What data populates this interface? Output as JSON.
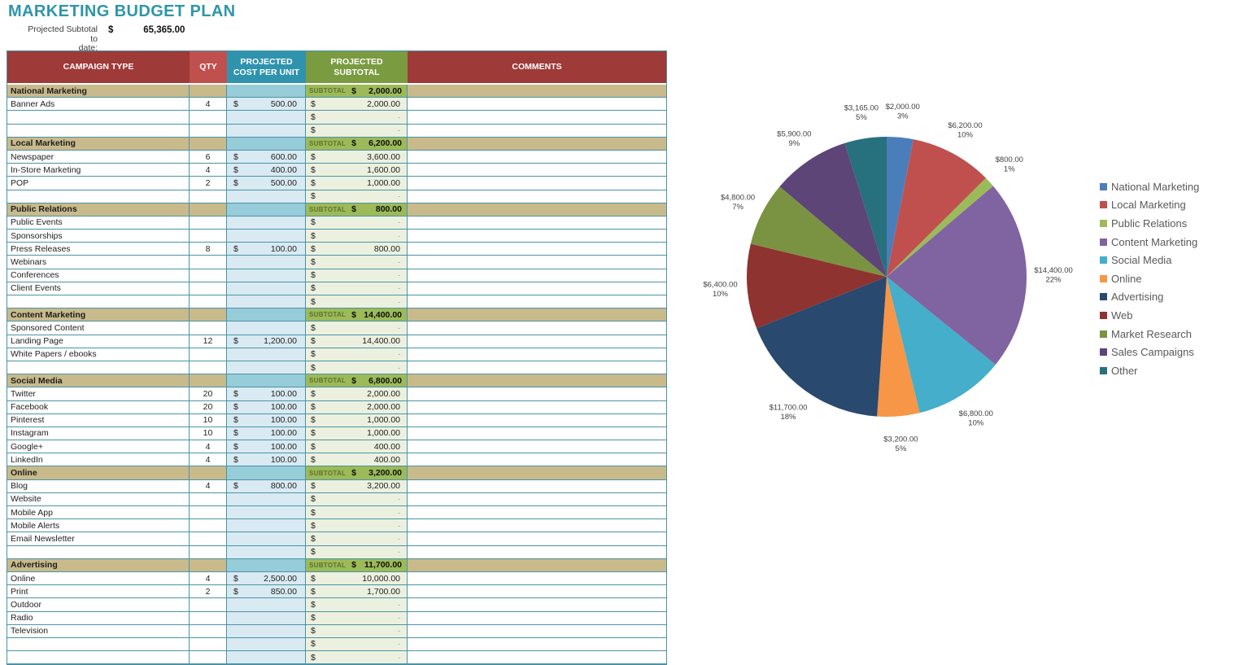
{
  "page_title": "MARKETING BUDGET PLAN",
  "summary": {
    "label_line1": "Projected Subtotal to",
    "label_line2": "date:",
    "currency": "$",
    "value": "65,365.00"
  },
  "table": {
    "headers": [
      "CAMPAIGN TYPE",
      "QTY",
      "PROJECTED COST PER UNIT",
      "PROJECTED SUBTOTAL",
      "COMMENTS"
    ],
    "subtotal_label": "SUBTOTAL",
    "currency": "$",
    "dash": "-",
    "rows": [
      {
        "type": "section",
        "name": "National Marketing",
        "subtotal": "2,000.00"
      },
      {
        "type": "item",
        "name": "Banner Ads",
        "qty": "4",
        "unit": "500.00",
        "subtotal": "2,000.00"
      },
      {
        "type": "empty"
      },
      {
        "type": "empty"
      },
      {
        "type": "section",
        "name": "Local Marketing",
        "subtotal": "6,200.00"
      },
      {
        "type": "item",
        "name": "Newspaper",
        "qty": "6",
        "unit": "600.00",
        "subtotal": "3,600.00"
      },
      {
        "type": "item",
        "name": "In-Store Marketing",
        "qty": "4",
        "unit": "400.00",
        "subtotal": "1,600.00"
      },
      {
        "type": "item",
        "name": "POP",
        "qty": "2",
        "unit": "500.00",
        "subtotal": "1,000.00"
      },
      {
        "type": "empty"
      },
      {
        "type": "section",
        "name": "Public Relations",
        "subtotal": "800.00"
      },
      {
        "type": "item",
        "name": "Public Events"
      },
      {
        "type": "item",
        "name": "Sponsorships"
      },
      {
        "type": "item",
        "name": "Press Releases",
        "qty": "8",
        "unit": "100.00",
        "subtotal": "800.00"
      },
      {
        "type": "item",
        "name": "Webinars"
      },
      {
        "type": "item",
        "name": "Conferences"
      },
      {
        "type": "item",
        "name": "Client Events"
      },
      {
        "type": "empty"
      },
      {
        "type": "section",
        "name": "Content Marketing",
        "subtotal": "14,400.00"
      },
      {
        "type": "item",
        "name": "Sponsored Content"
      },
      {
        "type": "item",
        "name": "Landing Page",
        "qty": "12",
        "unit": "1,200.00",
        "subtotal": "14,400.00"
      },
      {
        "type": "item",
        "name": "White Papers / ebooks"
      },
      {
        "type": "empty"
      },
      {
        "type": "section",
        "name": "Social Media",
        "subtotal": "6,800.00"
      },
      {
        "type": "item",
        "name": "Twitter",
        "qty": "20",
        "unit": "100.00",
        "subtotal": "2,000.00"
      },
      {
        "type": "item",
        "name": "Facebook",
        "qty": "20",
        "unit": "100.00",
        "subtotal": "2,000.00"
      },
      {
        "type": "item",
        "name": "Pinterest",
        "qty": "10",
        "unit": "100.00",
        "subtotal": "1,000.00"
      },
      {
        "type": "item",
        "name": "Instagram",
        "qty": "10",
        "unit": "100.00",
        "subtotal": "1,000.00"
      },
      {
        "type": "item",
        "name": "Google+",
        "qty": "4",
        "unit": "100.00",
        "subtotal": "400.00"
      },
      {
        "type": "item",
        "name": "LinkedIn",
        "qty": "4",
        "unit": "100.00",
        "subtotal": "400.00"
      },
      {
        "type": "section",
        "name": "Online",
        "subtotal": "3,200.00"
      },
      {
        "type": "item",
        "name": "Blog",
        "qty": "4",
        "unit": "800.00",
        "subtotal": "3,200.00"
      },
      {
        "type": "item",
        "name": "Website"
      },
      {
        "type": "item",
        "name": "Mobile App"
      },
      {
        "type": "item",
        "name": "Mobile Alerts"
      },
      {
        "type": "item",
        "name": "Email Newsletter"
      },
      {
        "type": "empty"
      },
      {
        "type": "section",
        "name": "Advertising",
        "subtotal": "11,700.00"
      },
      {
        "type": "item",
        "name": "Online",
        "qty": "4",
        "unit": "2,500.00",
        "subtotal": "10,000.00"
      },
      {
        "type": "item",
        "name": "Print",
        "qty": "2",
        "unit": "850.00",
        "subtotal": "1,700.00"
      },
      {
        "type": "item",
        "name": "Outdoor"
      },
      {
        "type": "item",
        "name": "Radio"
      },
      {
        "type": "item",
        "name": "Television"
      },
      {
        "type": "empty"
      },
      {
        "type": "empty"
      }
    ]
  },
  "chart_data": {
    "type": "pie",
    "categories": [
      "National Marketing",
      "Local Marketing",
      "Public Relations",
      "Content Marketing",
      "Social Media",
      "Online",
      "Advertising",
      "Web",
      "Market Research",
      "Sales Campaigns",
      "Other"
    ],
    "values": [
      2000,
      6200,
      800,
      14400,
      6800,
      3200,
      11700,
      6400,
      4800,
      5900,
      3165
    ],
    "total": 65365,
    "amount_labels": [
      "$2,000.00",
      "$6,200.00",
      "$800.00",
      "$14,400.00",
      "$6,800.00",
      "$3,200.00",
      "$11,700.00",
      "$6,400.00",
      "$4,800.00",
      "$5,900.00",
      "$3,165.00"
    ],
    "percent_labels": [
      "3%",
      "10%",
      "1%",
      "22%",
      "10%",
      "5%",
      "18%",
      "10%",
      "7%",
      "9%",
      "5%"
    ],
    "colors": [
      "#4a7ebb",
      "#c0504d",
      "#9bbb59",
      "#8064a2",
      "#44aecb",
      "#f79646",
      "#29496e",
      "#8e3330",
      "#7a9342",
      "#5d4577",
      "#27707e"
    ],
    "legend_position": "right",
    "title": ""
  },
  "theme": {
    "title_color": "#2f95a9",
    "grid_color": "#4a93a8",
    "header_dark_red": "#9e3a37",
    "header_red": "#c0504d",
    "header_teal": "#3093ae",
    "header_green": "#7b9b41",
    "section_tan": "#c9ba8c",
    "section_green": "#9cba58",
    "section_blue": "#97ccd9",
    "item_blue": "#d9eaf2",
    "item_green": "#ecf1df"
  }
}
